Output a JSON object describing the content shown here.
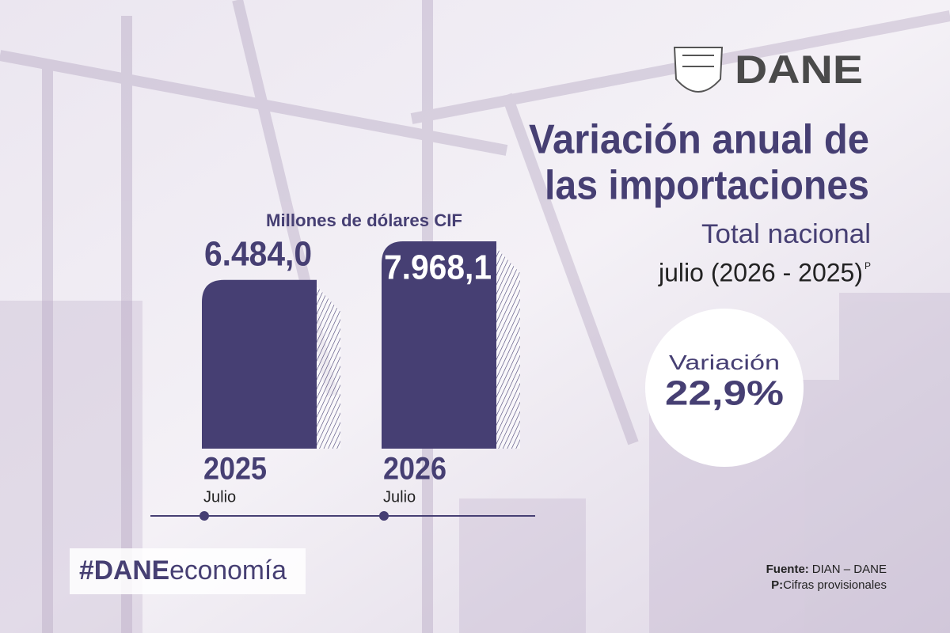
{
  "chart_data": {
    "type": "bar",
    "logo": "DANE",
    "title_lines": [
      "Variación anual de",
      "las importaciones"
    ],
    "subtitle": "Total nacional",
    "period": "julio (2026 - 2025)",
    "period_mark": "P",
    "unit_label": "Millones de dólares CIF",
    "categories": [
      "2025",
      "2026"
    ],
    "category_sublabels": [
      "Julio",
      "Julio"
    ],
    "values": [
      6484.0,
      7968.1
    ],
    "value_labels": [
      "6.484,0",
      "7.968,1"
    ],
    "color": "#463f73",
    "variation_label": "Variación",
    "variation_value": "22,9%",
    "hashtag_bold": "#DANE",
    "hashtag_rest": "economía",
    "source_label": "Fuente:",
    "source": "DIAN – DANE",
    "note_label": "P:",
    "note": "Cifras provisionales"
  }
}
